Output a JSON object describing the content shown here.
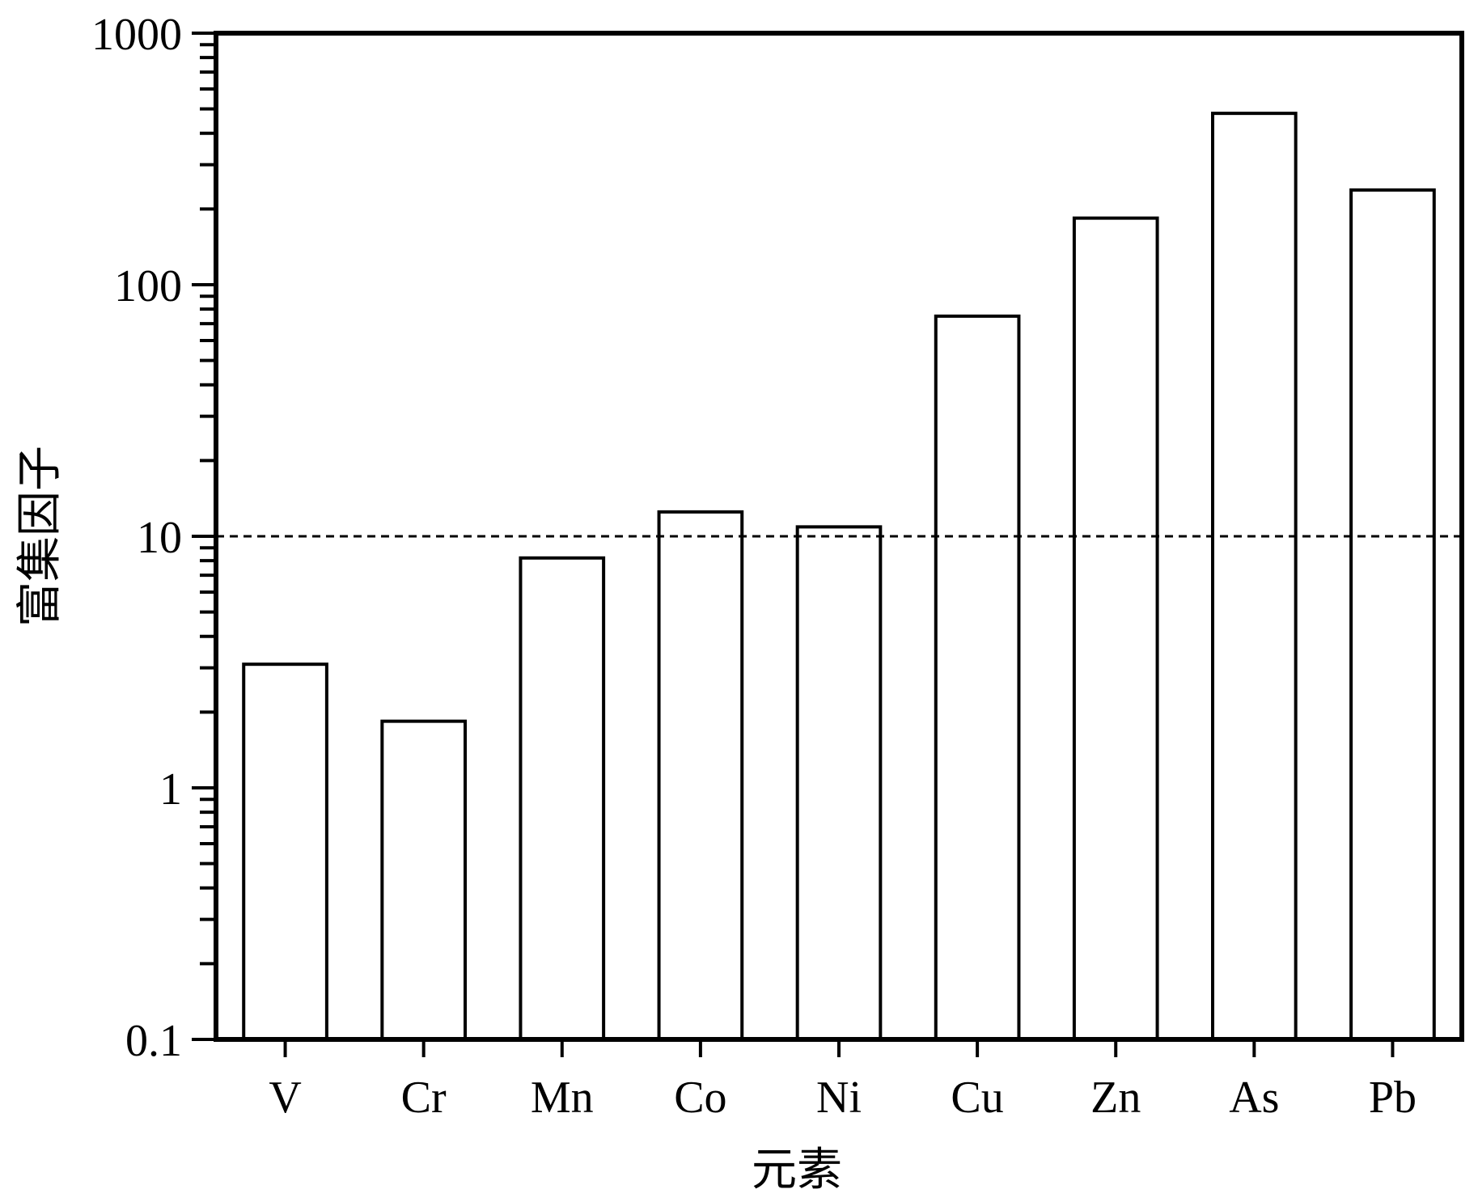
{
  "chart_data": {
    "type": "bar",
    "x_label": "元素",
    "y_label": "富集因子",
    "categories": [
      "V",
      "Cr",
      "Mn",
      "Co",
      "Ni",
      "Cu",
      "Zn",
      "As",
      "Pb"
    ],
    "values": [
      3.1,
      1.84,
      8.2,
      12.5,
      10.9,
      75,
      184,
      480,
      238
    ],
    "color": "#ffffff",
    "edge_color": "#000000",
    "ylim": [
      0.1,
      1000
    ],
    "yticks": [
      0.1,
      1,
      10,
      100,
      1000
    ],
    "log_y": true,
    "reference_line": 10
  }
}
